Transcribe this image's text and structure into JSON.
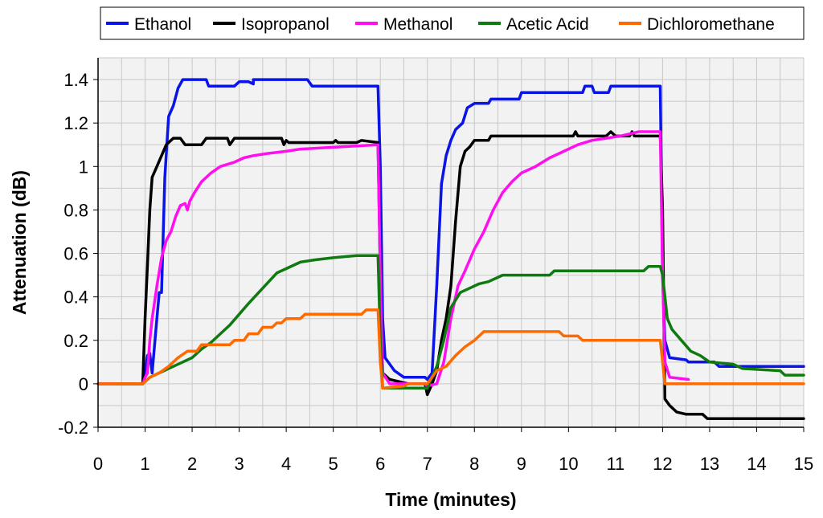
{
  "chart_data": {
    "type": "line",
    "title": "",
    "xlabel": "Time (minutes)",
    "ylabel": "Attenuation (dB)",
    "xlim": [
      0,
      15
    ],
    "ylim": [
      -0.2,
      1.5
    ],
    "x_ticks": [
      0,
      1,
      2,
      3,
      4,
      5,
      6,
      7,
      8,
      9,
      10,
      11,
      12,
      13,
      14,
      15
    ],
    "y_ticks": [
      -0.2,
      0,
      0.2,
      0.4,
      0.6,
      0.8,
      1,
      1.2,
      1.4
    ],
    "y_tick_labels": [
      "-0.2",
      "0",
      "0.2",
      "0.4",
      "0.6",
      "0.8",
      "1",
      "1.2",
      "1.4"
    ],
    "grid": true,
    "legend_position": "top",
    "series": [
      {
        "name": "Ethanol",
        "color": "#0a14e6",
        "points": [
          [
            0,
            0
          ],
          [
            0.95,
            0
          ],
          [
            1.05,
            0.13
          ],
          [
            1.1,
            0.14
          ],
          [
            1.15,
            0.05
          ],
          [
            1.25,
            0.3
          ],
          [
            1.3,
            0.42
          ],
          [
            1.35,
            0.42
          ],
          [
            1.42,
            0.95
          ],
          [
            1.5,
            1.23
          ],
          [
            1.6,
            1.28
          ],
          [
            1.7,
            1.36
          ],
          [
            1.8,
            1.4
          ],
          [
            2.3,
            1.4
          ],
          [
            2.35,
            1.37
          ],
          [
            2.9,
            1.37
          ],
          [
            3.0,
            1.39
          ],
          [
            3.2,
            1.39
          ],
          [
            3.3,
            1.38
          ],
          [
            3.3,
            1.4
          ],
          [
            4.45,
            1.4
          ],
          [
            4.55,
            1.37
          ],
          [
            5.95,
            1.37
          ],
          [
            6.0,
            1.0
          ],
          [
            6.05,
            0.3
          ],
          [
            6.1,
            0.12
          ],
          [
            6.3,
            0.06
          ],
          [
            6.5,
            0.03
          ],
          [
            6.95,
            0.03
          ],
          [
            7.0,
            0.02
          ],
          [
            7.1,
            0.05
          ],
          [
            7.2,
            0.45
          ],
          [
            7.3,
            0.92
          ],
          [
            7.4,
            1.05
          ],
          [
            7.5,
            1.12
          ],
          [
            7.6,
            1.17
          ],
          [
            7.75,
            1.2
          ],
          [
            7.85,
            1.27
          ],
          [
            8.0,
            1.29
          ],
          [
            8.3,
            1.29
          ],
          [
            8.35,
            1.31
          ],
          [
            8.95,
            1.31
          ],
          [
            9.0,
            1.34
          ],
          [
            10.3,
            1.34
          ],
          [
            10.35,
            1.37
          ],
          [
            10.5,
            1.37
          ],
          [
            10.55,
            1.34
          ],
          [
            10.85,
            1.34
          ],
          [
            10.9,
            1.37
          ],
          [
            11.95,
            1.37
          ],
          [
            12.0,
            0.5
          ],
          [
            12.05,
            0.2
          ],
          [
            12.15,
            0.12
          ],
          [
            12.5,
            0.11
          ],
          [
            12.55,
            0.1
          ],
          [
            13.1,
            0.1
          ],
          [
            13.2,
            0.08
          ],
          [
            15,
            0.08
          ]
        ]
      },
      {
        "name": "Isopropanol",
        "color": "#000000",
        "points": [
          [
            0,
            0
          ],
          [
            0.95,
            0
          ],
          [
            1.0,
            0.3
          ],
          [
            1.05,
            0.55
          ],
          [
            1.1,
            0.8
          ],
          [
            1.15,
            0.95
          ],
          [
            1.25,
            1.0
          ],
          [
            1.35,
            1.05
          ],
          [
            1.45,
            1.1
          ],
          [
            1.6,
            1.13
          ],
          [
            1.75,
            1.13
          ],
          [
            1.85,
            1.1
          ],
          [
            2.2,
            1.1
          ],
          [
            2.3,
            1.13
          ],
          [
            2.75,
            1.13
          ],
          [
            2.8,
            1.1
          ],
          [
            2.9,
            1.13
          ],
          [
            3.9,
            1.13
          ],
          [
            3.95,
            1.1
          ],
          [
            4.0,
            1.12
          ],
          [
            4.05,
            1.11
          ],
          [
            5.0,
            1.11
          ],
          [
            5.05,
            1.12
          ],
          [
            5.1,
            1.11
          ],
          [
            5.5,
            1.11
          ],
          [
            5.6,
            1.12
          ],
          [
            5.95,
            1.11
          ],
          [
            6.0,
            0.5
          ],
          [
            6.05,
            0.05
          ],
          [
            6.2,
            0.02
          ],
          [
            6.6,
            0.0
          ],
          [
            6.95,
            0.0
          ],
          [
            7.0,
            -0.05
          ],
          [
            7.1,
            0.0
          ],
          [
            7.2,
            0.06
          ],
          [
            7.3,
            0.2
          ],
          [
            7.4,
            0.3
          ],
          [
            7.5,
            0.45
          ],
          [
            7.6,
            0.75
          ],
          [
            7.7,
            1.0
          ],
          [
            7.8,
            1.07
          ],
          [
            7.9,
            1.09
          ],
          [
            8.0,
            1.12
          ],
          [
            8.3,
            1.12
          ],
          [
            8.35,
            1.14
          ],
          [
            10.1,
            1.14
          ],
          [
            10.15,
            1.16
          ],
          [
            10.2,
            1.14
          ],
          [
            10.8,
            1.14
          ],
          [
            10.9,
            1.16
          ],
          [
            11.0,
            1.14
          ],
          [
            11.3,
            1.14
          ],
          [
            11.35,
            1.16
          ],
          [
            11.4,
            1.14
          ],
          [
            11.95,
            1.14
          ],
          [
            12.0,
            0.8
          ],
          [
            12.05,
            -0.07
          ],
          [
            12.15,
            -0.1
          ],
          [
            12.3,
            -0.13
          ],
          [
            12.5,
            -0.14
          ],
          [
            12.85,
            -0.14
          ],
          [
            12.95,
            -0.16
          ],
          [
            15,
            -0.16
          ]
        ]
      },
      {
        "name": "Methanol",
        "color": "#ff0ff0",
        "points": [
          [
            0,
            0
          ],
          [
            0.95,
            0
          ],
          [
            1.0,
            0.03
          ],
          [
            1.05,
            0.05
          ],
          [
            1.1,
            0.2
          ],
          [
            1.15,
            0.3
          ],
          [
            1.25,
            0.45
          ],
          [
            1.35,
            0.58
          ],
          [
            1.45,
            0.66
          ],
          [
            1.55,
            0.7
          ],
          [
            1.65,
            0.77
          ],
          [
            1.75,
            0.82
          ],
          [
            1.85,
            0.83
          ],
          [
            1.9,
            0.8
          ],
          [
            1.95,
            0.84
          ],
          [
            2.05,
            0.88
          ],
          [
            2.2,
            0.93
          ],
          [
            2.4,
            0.97
          ],
          [
            2.6,
            1.0
          ],
          [
            2.9,
            1.02
          ],
          [
            3.1,
            1.04
          ],
          [
            3.3,
            1.05
          ],
          [
            3.6,
            1.06
          ],
          [
            4.0,
            1.07
          ],
          [
            4.3,
            1.08
          ],
          [
            5.95,
            1.1
          ],
          [
            6.0,
            0.5
          ],
          [
            6.05,
            0.05
          ],
          [
            6.2,
            0.0
          ],
          [
            6.6,
            0.0
          ],
          [
            6.95,
            0.0
          ],
          [
            7.0,
            -0.01
          ],
          [
            7.2,
            0.0
          ],
          [
            7.35,
            0.1
          ],
          [
            7.5,
            0.3
          ],
          [
            7.65,
            0.45
          ],
          [
            7.8,
            0.52
          ],
          [
            8.0,
            0.62
          ],
          [
            8.2,
            0.7
          ],
          [
            8.4,
            0.8
          ],
          [
            8.6,
            0.88
          ],
          [
            8.8,
            0.93
          ],
          [
            9.0,
            0.97
          ],
          [
            9.3,
            1.0
          ],
          [
            9.6,
            1.04
          ],
          [
            9.9,
            1.07
          ],
          [
            10.2,
            1.1
          ],
          [
            10.5,
            1.12
          ],
          [
            10.8,
            1.13
          ],
          [
            11.1,
            1.14
          ],
          [
            11.5,
            1.16
          ],
          [
            11.95,
            1.16
          ],
          [
            12.0,
            0.5
          ],
          [
            12.05,
            0.1
          ],
          [
            12.15,
            0.03
          ],
          [
            12.55,
            0.02
          ]
        ]
      },
      {
        "name": "Acetic Acid",
        "color": "#0f7a0f",
        "points": [
          [
            0.4,
            0
          ],
          [
            0.95,
            0
          ],
          [
            1.1,
            0.03
          ],
          [
            1.3,
            0.05
          ],
          [
            1.5,
            0.07
          ],
          [
            1.8,
            0.1
          ],
          [
            2.0,
            0.12
          ],
          [
            2.2,
            0.16
          ],
          [
            2.4,
            0.19
          ],
          [
            2.6,
            0.23
          ],
          [
            2.8,
            0.27
          ],
          [
            3.0,
            0.32
          ],
          [
            3.2,
            0.37
          ],
          [
            3.5,
            0.44
          ],
          [
            3.8,
            0.51
          ],
          [
            4.0,
            0.53
          ],
          [
            4.3,
            0.56
          ],
          [
            4.6,
            0.57
          ],
          [
            5.0,
            0.58
          ],
          [
            5.5,
            0.59
          ],
          [
            5.95,
            0.59
          ],
          [
            6.0,
            0.2
          ],
          [
            6.05,
            -0.02
          ],
          [
            7.0,
            -0.02
          ],
          [
            7.2,
            0.08
          ],
          [
            7.35,
            0.2
          ],
          [
            7.5,
            0.35
          ],
          [
            7.7,
            0.42
          ],
          [
            7.9,
            0.44
          ],
          [
            8.1,
            0.46
          ],
          [
            8.3,
            0.47
          ],
          [
            8.6,
            0.5
          ],
          [
            9.6,
            0.5
          ],
          [
            9.7,
            0.52
          ],
          [
            11.6,
            0.52
          ],
          [
            11.7,
            0.54
          ],
          [
            11.95,
            0.54
          ],
          [
            12.0,
            0.5
          ],
          [
            12.1,
            0.3
          ],
          [
            12.2,
            0.25
          ],
          [
            12.4,
            0.2
          ],
          [
            12.6,
            0.15
          ],
          [
            12.8,
            0.13
          ],
          [
            13.0,
            0.1
          ],
          [
            13.5,
            0.09
          ],
          [
            13.7,
            0.07
          ],
          [
            14.5,
            0.06
          ],
          [
            14.6,
            0.04
          ],
          [
            15,
            0.04
          ]
        ]
      },
      {
        "name": "Dichloromethane",
        "color": "#ff6a00",
        "points": [
          [
            0,
            0
          ],
          [
            0.95,
            0
          ],
          [
            1.1,
            0.03
          ],
          [
            1.3,
            0.05
          ],
          [
            1.5,
            0.08
          ],
          [
            1.7,
            0.12
          ],
          [
            1.9,
            0.15
          ],
          [
            2.1,
            0.15
          ],
          [
            2.2,
            0.18
          ],
          [
            2.8,
            0.18
          ],
          [
            2.9,
            0.2
          ],
          [
            3.1,
            0.2
          ],
          [
            3.2,
            0.23
          ],
          [
            3.4,
            0.23
          ],
          [
            3.5,
            0.26
          ],
          [
            3.7,
            0.26
          ],
          [
            3.8,
            0.28
          ],
          [
            3.9,
            0.28
          ],
          [
            4.0,
            0.3
          ],
          [
            4.3,
            0.3
          ],
          [
            4.4,
            0.32
          ],
          [
            5.6,
            0.32
          ],
          [
            5.7,
            0.34
          ],
          [
            5.95,
            0.34
          ],
          [
            6.0,
            0.1
          ],
          [
            6.05,
            -0.02
          ],
          [
            6.5,
            -0.01
          ],
          [
            6.6,
            0.0
          ],
          [
            7.0,
            0.0
          ],
          [
            7.2,
            0.06
          ],
          [
            7.4,
            0.08
          ],
          [
            7.6,
            0.13
          ],
          [
            7.8,
            0.17
          ],
          [
            8.0,
            0.2
          ],
          [
            8.2,
            0.24
          ],
          [
            9.8,
            0.24
          ],
          [
            9.9,
            0.22
          ],
          [
            10.2,
            0.22
          ],
          [
            10.3,
            0.2
          ],
          [
            11.95,
            0.2
          ],
          [
            12.0,
            0.1
          ],
          [
            12.05,
            0.0
          ],
          [
            15,
            0.0
          ]
        ]
      }
    ]
  }
}
